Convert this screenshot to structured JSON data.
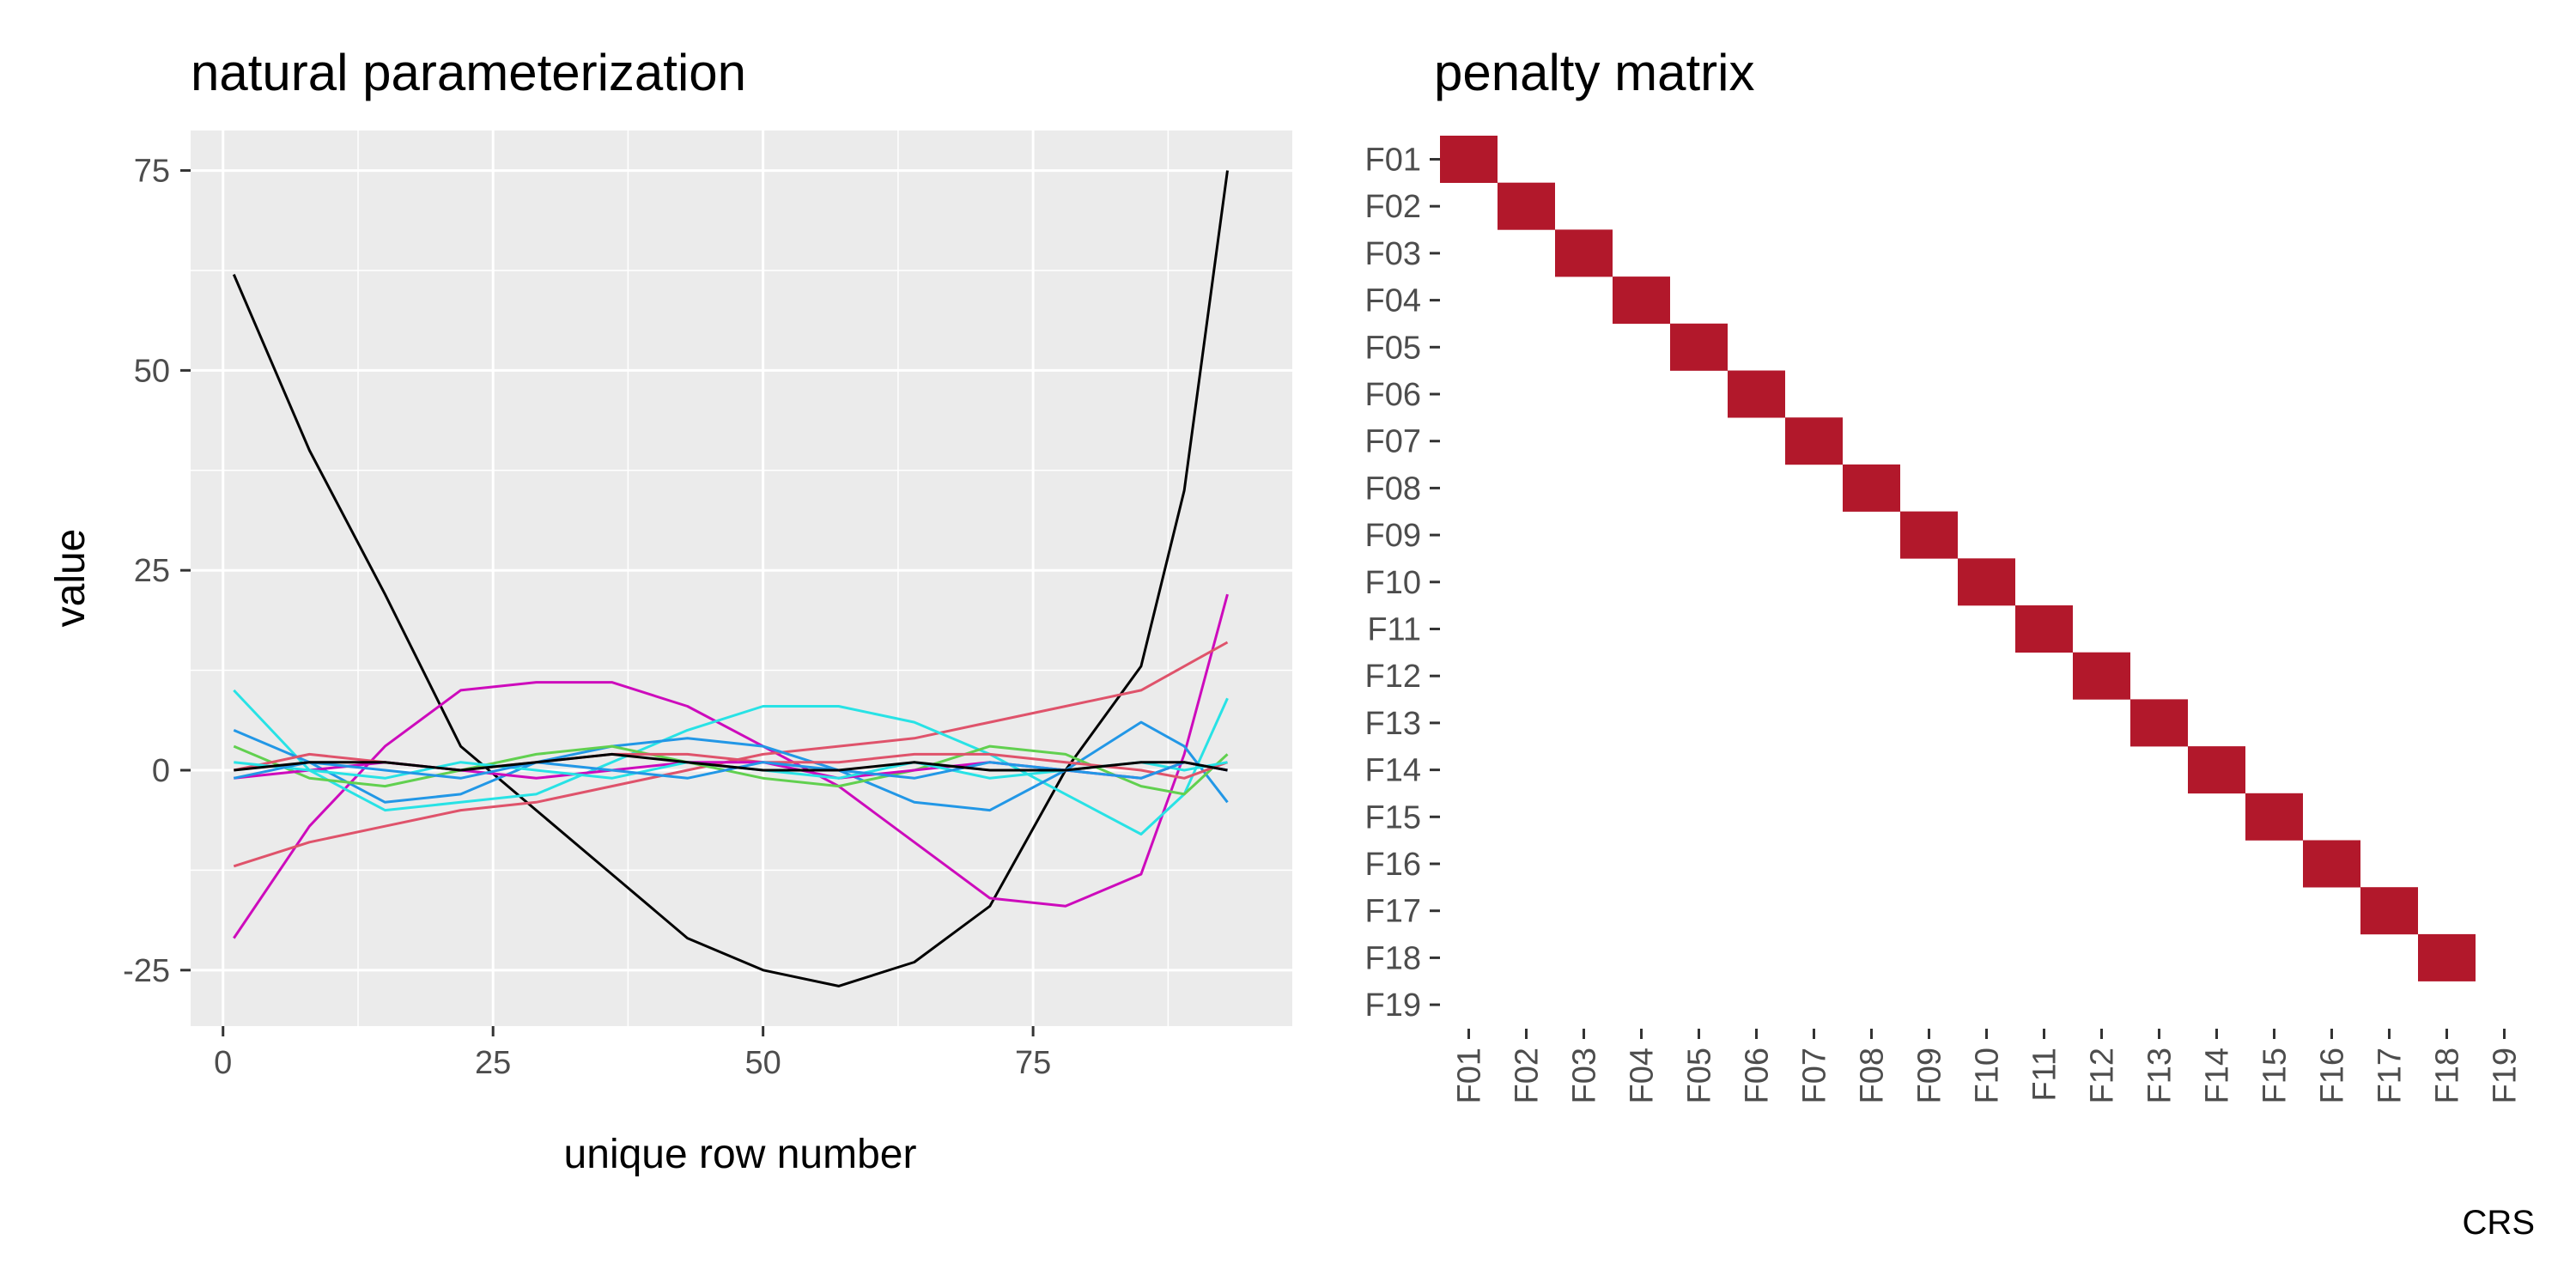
{
  "caption": "CRS",
  "chart_data": [
    {
      "type": "line",
      "title": "natural parameterization",
      "xlabel": "unique row number",
      "ylabel": "value",
      "xlim": [
        -3,
        99
      ],
      "ylim": [
        -32,
        80
      ],
      "xticks": [
        0,
        25,
        50,
        75
      ],
      "yticks": [
        -25,
        0,
        25,
        50,
        75
      ],
      "x": [
        1,
        8,
        15,
        22,
        29,
        36,
        43,
        50,
        57,
        64,
        71,
        78,
        85,
        89,
        93
      ],
      "series": [
        {
          "color": "#000000",
          "values": [
            62,
            40,
            22,
            3,
            -5,
            -13,
            -21,
            -25,
            -27,
            -24,
            -17,
            0,
            13,
            35,
            75
          ]
        },
        {
          "color": "#cd0bbc",
          "values": [
            -21,
            -7,
            3,
            10,
            11,
            11,
            8,
            3,
            -2,
            -9,
            -16,
            -17,
            -13,
            2,
            22
          ]
        },
        {
          "color": "#df536b",
          "values": [
            -12,
            -9,
            -7,
            -5,
            -4,
            -2,
            0,
            2,
            3,
            4,
            6,
            8,
            10,
            13,
            16
          ]
        },
        {
          "color": "#28e2e5",
          "values": [
            10,
            0,
            -5,
            -4,
            -3,
            1,
            5,
            8,
            8,
            6,
            2,
            -3,
            -8,
            -3,
            9
          ]
        },
        {
          "color": "#2297e6",
          "values": [
            5,
            1,
            -4,
            -3,
            1,
            3,
            4,
            3,
            0,
            -4,
            -5,
            0,
            6,
            3,
            -4
          ]
        },
        {
          "color": "#61d04f",
          "values": [
            3,
            -1,
            -2,
            0,
            2,
            3,
            1,
            -1,
            -2,
            0,
            3,
            2,
            -2,
            -3,
            2
          ]
        },
        {
          "color": "#df536b",
          "values": [
            0,
            2,
            1,
            0,
            1,
            2,
            2,
            1,
            1,
            2,
            2,
            1,
            0,
            -1,
            1
          ]
        },
        {
          "color": "#cd0bbc",
          "values": [
            -1,
            0,
            1,
            0,
            -1,
            0,
            1,
            1,
            -1,
            0,
            1,
            0,
            -1,
            1,
            0
          ]
        },
        {
          "color": "#28e2e5",
          "values": [
            1,
            0,
            -1,
            1,
            0,
            -1,
            1,
            0,
            -1,
            1,
            -1,
            0,
            1,
            0,
            1
          ]
        },
        {
          "color": "#2297e6",
          "values": [
            -1,
            1,
            0,
            -1,
            1,
            0,
            -1,
            1,
            0,
            -1,
            1,
            0,
            -1,
            1,
            0
          ]
        },
        {
          "color": "#000000",
          "values": [
            0,
            1,
            1,
            0,
            1,
            2,
            1,
            0,
            0,
            1,
            0,
            0,
            1,
            1,
            0
          ]
        }
      ]
    },
    {
      "type": "heatmap",
      "title": "penalty matrix",
      "rows": [
        "F01",
        "F02",
        "F03",
        "F04",
        "F05",
        "F06",
        "F07",
        "F08",
        "F09",
        "F10",
        "F11",
        "F12",
        "F13",
        "F14",
        "F15",
        "F16",
        "F17",
        "F18",
        "F19"
      ],
      "cols": [
        "F01",
        "F02",
        "F03",
        "F04",
        "F05",
        "F06",
        "F07",
        "F08",
        "F09",
        "F10",
        "F11",
        "F12",
        "F13",
        "F14",
        "F15",
        "F16",
        "F17",
        "F18",
        "F19"
      ],
      "cell_color": "#b2182b",
      "cells": [
        [
          "F01",
          "F01"
        ],
        [
          "F02",
          "F02"
        ],
        [
          "F03",
          "F03"
        ],
        [
          "F04",
          "F04"
        ],
        [
          "F05",
          "F05"
        ],
        [
          "F06",
          "F06"
        ],
        [
          "F07",
          "F07"
        ],
        [
          "F08",
          "F08"
        ],
        [
          "F09",
          "F09"
        ],
        [
          "F10",
          "F10"
        ],
        [
          "F11",
          "F11"
        ],
        [
          "F12",
          "F12"
        ],
        [
          "F13",
          "F13"
        ],
        [
          "F14",
          "F14"
        ],
        [
          "F15",
          "F15"
        ],
        [
          "F16",
          "F16"
        ],
        [
          "F17",
          "F17"
        ],
        [
          "F18",
          "F18"
        ]
      ]
    }
  ]
}
